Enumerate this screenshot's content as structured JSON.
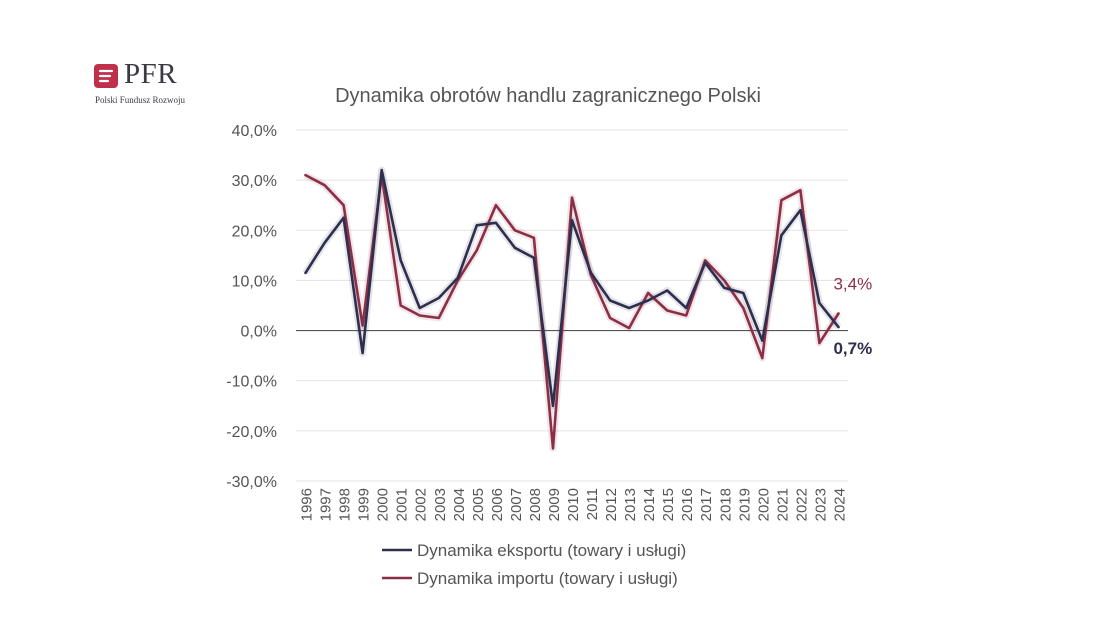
{
  "logo": {
    "name": "PFR",
    "subtitle": "Polski Fundusz Rozwoju"
  },
  "chart_data": {
    "type": "line",
    "title": "Dynamika obrotów handlu zagranicznego Polski",
    "xlabel": "",
    "ylabel": "",
    "ylim": [
      -30,
      40
    ],
    "yticks": [
      -30,
      -20,
      -10,
      0,
      10,
      20,
      30,
      40
    ],
    "ytick_labels": [
      "-30,0%",
      "-20,0%",
      "-10,0%",
      "0,0%",
      "10,0%",
      "20,0%",
      "30,0%",
      "40,0%"
    ],
    "grid": true,
    "legend_position": "bottom",
    "categories": [
      "1996",
      "1997",
      "1998",
      "1999",
      "2000",
      "2001",
      "2002",
      "2003",
      "2004",
      "2005",
      "2006",
      "2007",
      "2008",
      "2009",
      "2010",
      "2011",
      "2012",
      "2013",
      "2014",
      "2015",
      "2016",
      "2017",
      "2018",
      "2019",
      "2020",
      "2021",
      "2022",
      "2023",
      "2024"
    ],
    "series": [
      {
        "name": "Dynamika eksportu (towary i usługi)",
        "color": "#2e2e4f",
        "values": [
          11.5,
          17.5,
          22.5,
          -4.5,
          32.0,
          14.0,
          4.5,
          6.5,
          10.5,
          21.0,
          21.5,
          16.5,
          14.5,
          -15.0,
          22.0,
          11.5,
          6.0,
          4.5,
          6.0,
          8.0,
          4.5,
          13.5,
          8.5,
          7.5,
          -2.0,
          19.0,
          24.0,
          5.5,
          0.7
        ]
      },
      {
        "name": "Dynamika importu (towary i usługi)",
        "color": "#8b2f46",
        "values": [
          31.0,
          29.0,
          25.0,
          1.0,
          31.0,
          5.0,
          3.0,
          2.5,
          10.0,
          16.0,
          25.0,
          20.0,
          18.5,
          -23.5,
          26.5,
          11.0,
          2.5,
          0.5,
          7.5,
          4.0,
          3.0,
          14.0,
          10.0,
          4.5,
          -5.5,
          26.0,
          28.0,
          -2.5,
          3.4
        ]
      }
    ],
    "annotations": [
      {
        "series": 1,
        "category": "2024",
        "label": "3,4%",
        "color": "#8b2f46"
      },
      {
        "series": 0,
        "category": "2024",
        "label": "0,7%",
        "color": "#2e2e4f"
      }
    ]
  }
}
